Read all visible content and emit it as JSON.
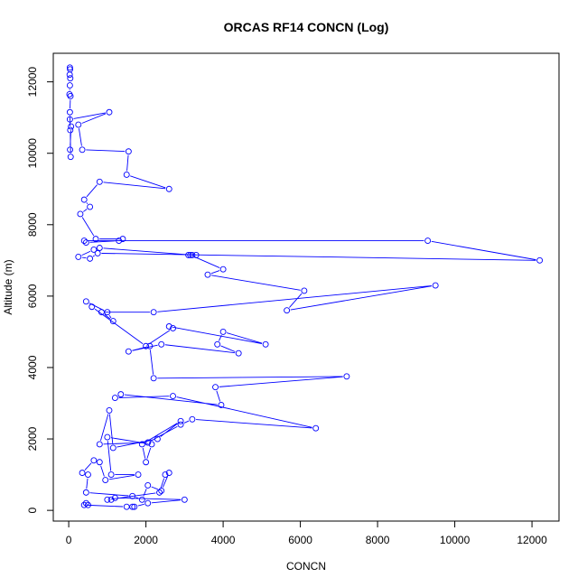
{
  "chart_data": {
    "type": "line",
    "title": "ORCAS RF14 CONCN (Log)",
    "xlabel": "CONCN",
    "ylabel": "Altitude (m)",
    "xlim": [
      -400,
      12700
    ],
    "ylim": [
      -300,
      12800
    ],
    "x_ticks": [
      0,
      2000,
      4000,
      6000,
      8000,
      10000,
      12000
    ],
    "y_ticks": [
      0,
      2000,
      4000,
      6000,
      8000,
      10000,
      12000
    ],
    "x_tick_labels": [
      "0",
      "2000",
      "4000",
      "6000",
      "8000",
      "10000",
      "12000"
    ],
    "y_tick_labels": [
      "0",
      "2000",
      "4000",
      "6000",
      "8000",
      "10000",
      "12000"
    ],
    "grid": false,
    "marker": "open-circle",
    "color": "#0000ff",
    "series": [
      {
        "x": [
          30,
          35,
          25,
          40,
          30,
          20,
          45,
          30,
          40,
          50,
          35,
          60,
          30,
          1050,
          250,
          350,
          1550,
          1500,
          2600,
          800,
          400,
          550,
          300,
          700,
          1400,
          1300,
          450,
          400,
          9300,
          12200,
          750,
          550,
          250,
          650,
          800,
          3200,
          3300,
          3100,
          3150,
          4000,
          3600,
          6100,
          5650,
          9500,
          2200,
          850,
          1150,
          1000,
          450,
          600,
          2000,
          2700,
          2600,
          5100,
          4000,
          3850,
          4400,
          2400,
          1550,
          2100,
          2200,
          7200,
          3800,
          3950,
          1350,
          1200,
          2700,
          6400,
          3200,
          2900,
          2050,
          800,
          1050,
          1150,
          2300,
          2900,
          1900,
          2000,
          2150,
          1000,
          1100,
          1800,
          950,
          800,
          650,
          350,
          500,
          450,
          1650,
          1900,
          2050,
          2400,
          2600,
          2500,
          2350,
          1000,
          1100,
          1200,
          3000,
          2050,
          1700,
          1650,
          1500,
          400,
          450,
          500
        ],
        "y": [
          12400,
          12350,
          12200,
          12100,
          11900,
          11650,
          11600,
          11150,
          10650,
          9900,
          10100,
          10750,
          10950,
          11150,
          10800,
          10100,
          10050,
          9400,
          9000,
          9200,
          8700,
          8500,
          8300,
          7600,
          7600,
          7550,
          7500,
          7550,
          7550,
          7000,
          7200,
          7050,
          7100,
          7300,
          7350,
          7150,
          7150,
          7150,
          7150,
          6750,
          6600,
          6150,
          5600,
          6300,
          5550,
          5550,
          5300,
          5550,
          5850,
          5700,
          4600,
          5100,
          5150,
          4650,
          5000,
          4650,
          4400,
          4650,
          4450,
          4600,
          3700,
          3750,
          3450,
          2950,
          3250,
          3150,
          3200,
          2300,
          2550,
          2400,
          1900,
          1850,
          2800,
          1750,
          2000,
          2500,
          1850,
          1350,
          1850,
          2050,
          1000,
          1000,
          850,
          1350,
          1400,
          1050,
          1000,
          500,
          400,
          300,
          700,
          550,
          1050,
          1000,
          500,
          300,
          300,
          350,
          300,
          200,
          100,
          100,
          100,
          150,
          200,
          150
        ]
      }
    ]
  }
}
